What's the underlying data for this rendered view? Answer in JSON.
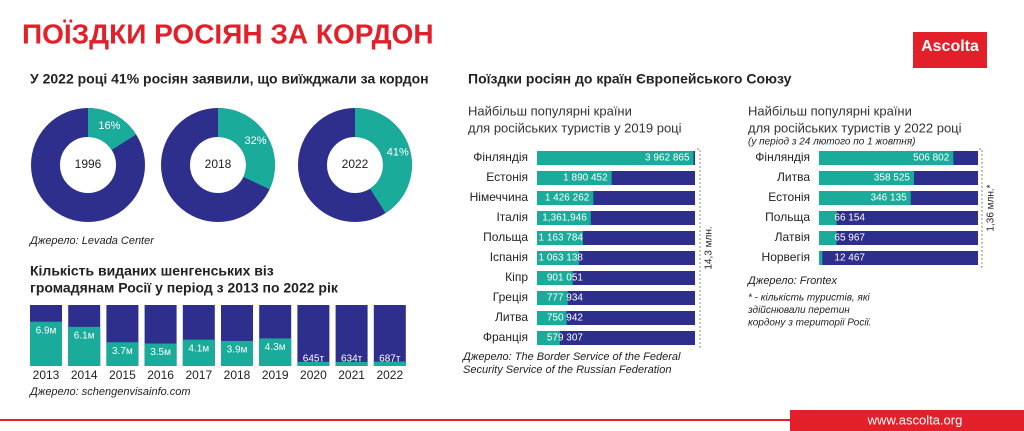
{
  "header": {
    "title": "ПОЇЗДКИ РОСІЯН ЗА КОРДОН",
    "logo": "Ascolta"
  },
  "footer": {
    "website": "www.ascolta.org"
  },
  "eu_section_title": "Поїздки росіян до країн Європейського Союзу",
  "chart_data": [
    {
      "type": "donut",
      "title": "У 2022 році 41% росіян заявили, що виїжджали за кордон",
      "categories": [
        "1996",
        "2018",
        "2022"
      ],
      "values": [
        16,
        32,
        41
      ],
      "value_labels": [
        "16%",
        "32%",
        "41%"
      ],
      "color": "#1aab9b",
      "rest_color": "#2e2e8c",
      "source": "Джерело: Levada Center"
    },
    {
      "type": "column",
      "title": [
        "Кількість виданих шенгенських віз",
        "громадянам Росії у період з 2013 по 2022 рік"
      ],
      "categories": [
        "2013",
        "2014",
        "2015",
        "2016",
        "2017",
        "2018",
        "2019",
        "2020",
        "2021",
        "2022"
      ],
      "values": [
        6.9,
        6.1,
        3.7,
        3.5,
        4.1,
        3.9,
        4.3,
        0.645,
        0.634,
        0.687
      ],
      "value_labels": [
        "6.9м",
        "6.1м",
        "3.7м",
        "3.5м",
        "4.1м",
        "3.9м",
        "4.3м",
        "645т",
        "634т",
        "687т"
      ],
      "ylim": [
        0,
        9.5
      ],
      "color": "#1aab9b",
      "rest_color": "#2e2e8c",
      "source": "Джерело: schengenvisainfo.com"
    },
    {
      "type": "hbar",
      "title": [
        "Найбільш популярні країни",
        "для російських туристів у 2019 році"
      ],
      "categories": [
        "Фінляндія",
        "Естонія",
        "Німеччина",
        "Італія",
        "Польща",
        "Іспанія",
        "Кіпр",
        "Греція",
        "Литва",
        "Франція"
      ],
      "values": [
        3962865,
        1890452,
        1426262,
        1361946,
        1163784,
        1063138,
        901051,
        777934,
        750942,
        579307
      ],
      "value_labels": [
        "3 962 865",
        "1 890 452",
        "1 426 262",
        "1,361,946",
        "1 163 784",
        "1 063 138",
        "901 051",
        "777 934",
        "750 942",
        "579 307"
      ],
      "xlim": [
        0,
        4000000
      ],
      "color": "#1aab9b",
      "rest_color": "#2e2e8c",
      "total_label": "14,3 млн.",
      "source": [
        "Джерело: The Border Service of the Federal",
        "Security Service of the Russian Federation"
      ]
    },
    {
      "type": "hbar",
      "title": [
        "Найбільш популярні країни",
        "для російських туристів у 2022 році"
      ],
      "subtitle": "(у період з 24 лютого по 1 жовтня)",
      "categories": [
        "Фінляндія",
        "Литва",
        "Естонія",
        "Польща",
        "Латвія",
        "Норвегія"
      ],
      "values": [
        506802,
        358525,
        346135,
        66154,
        65967,
        12467
      ],
      "value_labels": [
        "506 802",
        "358 525",
        "346 135",
        "66 154",
        "65 967",
        "12 467"
      ],
      "xlim": [
        0,
        600000
      ],
      "color": "#1aab9b",
      "rest_color": "#2e2e8c",
      "total_label": "1,36 млн.*",
      "source": "Джерело: Frontex",
      "note": [
        "* - кількість туристів, які",
        "здійснювали перетин",
        "кордону з території Росії."
      ]
    }
  ]
}
